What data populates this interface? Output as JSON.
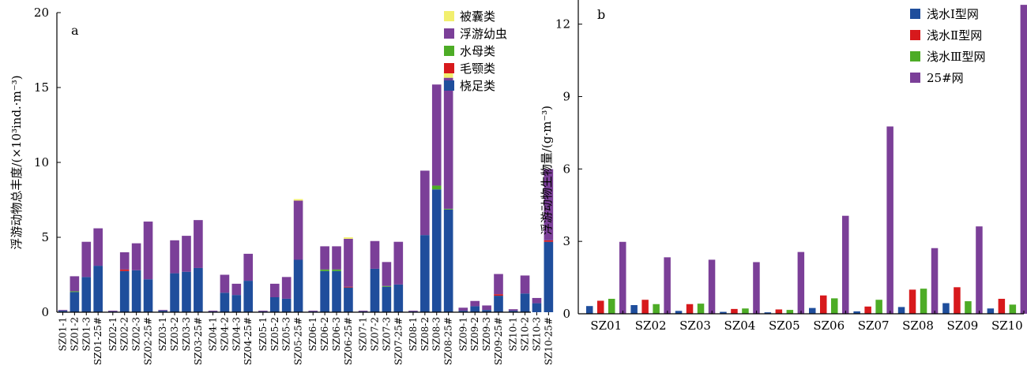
{
  "chart_data": [
    {
      "panel": "a",
      "type": "bar",
      "stacked": true,
      "ylabel": "浮游动物总丰度/(×10³ind.·m⁻³)",
      "ylim": [
        0,
        20
      ],
      "yticks": [
        0,
        5,
        10,
        15,
        20
      ],
      "legend_position": "top-right",
      "categories": [
        "SZ01-1",
        "SZ01-2",
        "SZ01-3",
        "SZ01-25#",
        "SZ02-1",
        "SZ02-2",
        "SZ02-3",
        "SZ02-25#",
        "SZ03-1",
        "SZ03-2",
        "SZ03-3",
        "SZ03-25#",
        "SZ04-1",
        "SZ04-2",
        "SZ04-3",
        "SZ04-25#",
        "SZ05-1",
        "SZ05-2",
        "SZ05-3",
        "SZ05-25#",
        "SZ06-1",
        "SZ06-2",
        "SZ06-3",
        "SZ06-25#",
        "SZ07-1",
        "SZ07-2",
        "SZ07-3",
        "SZ07-25#",
        "SZ08-1",
        "SZ08-2",
        "SZ08-3",
        "SZ08-25#",
        "SZ09-1",
        "SZ09-2",
        "SZ09-3",
        "SZ09-25#",
        "SZ10-1",
        "SZ10-2",
        "SZ10-3",
        "SZ10-25#"
      ],
      "series": [
        {
          "name": "桡足类",
          "color": "#1f4e9c",
          "values": [
            0.1,
            1.35,
            2.35,
            3.1,
            0.05,
            2.75,
            2.8,
            2.2,
            0.1,
            2.6,
            2.7,
            2.95,
            0.05,
            1.3,
            1.15,
            2.1,
            0.05,
            1.0,
            0.9,
            3.5,
            0.05,
            2.75,
            2.75,
            1.65,
            0.05,
            2.9,
            1.7,
            1.85,
            0.05,
            5.15,
            8.2,
            6.85,
            0.1,
            0.4,
            0.15,
            1.1,
            0.1,
            1.25,
            0.6,
            4.7
          ]
        },
        {
          "name": "毛颚类",
          "color": "#d7191c",
          "values": [
            0,
            0,
            0,
            0,
            0,
            0.1,
            0,
            0,
            0,
            0,
            0,
            0,
            0,
            0,
            0,
            0,
            0,
            0,
            0,
            0,
            0,
            0,
            0,
            0.05,
            0,
            0,
            0,
            0,
            0,
            0,
            0,
            0,
            0,
            0,
            0,
            0.1,
            0,
            0,
            0,
            0.1
          ]
        },
        {
          "name": "水母类",
          "color": "#4dac26",
          "values": [
            0,
            0.05,
            0,
            0,
            0,
            0,
            0,
            0,
            0,
            0,
            0,
            0,
            0,
            0,
            0,
            0,
            0,
            0,
            0,
            0,
            0,
            0.1,
            0.1,
            0,
            0,
            0,
            0.05,
            0,
            0,
            0,
            0.25,
            0.05,
            0,
            0,
            0,
            0,
            0,
            0,
            0,
            0
          ]
        },
        {
          "name": "浮游幼虫",
          "color": "#7b3f98",
          "values": [
            0.05,
            1.0,
            2.35,
            2.5,
            0.05,
            1.15,
            1.8,
            3.85,
            0.05,
            2.2,
            2.4,
            3.2,
            0.05,
            1.2,
            0.75,
            1.8,
            0.05,
            0.9,
            1.45,
            3.95,
            0.05,
            1.55,
            1.55,
            3.2,
            0.05,
            1.85,
            1.6,
            2.85,
            0.05,
            4.3,
            6.75,
            8.75,
            0.2,
            0.35,
            0.3,
            1.35,
            0.1,
            1.2,
            0.35,
            4.75
          ]
        },
        {
          "name": "被囊类",
          "color": "#f2ef6e",
          "values": [
            0,
            0,
            0,
            0,
            0,
            0,
            0,
            0,
            0,
            0,
            0,
            0,
            0,
            0,
            0,
            0,
            0,
            0,
            0,
            0.1,
            0,
            0,
            0,
            0.1,
            0,
            0,
            0,
            0,
            0,
            0,
            0,
            0.45,
            0,
            0,
            0,
            0,
            0,
            0,
            0,
            0
          ]
        }
      ]
    },
    {
      "panel": "b",
      "type": "bar",
      "ylabel": "浮游动物生物量/(g·m⁻³)",
      "ylim": [
        0,
        13
      ],
      "yticks": [
        0,
        3,
        6,
        9,
        12
      ],
      "legend_position": "top-right",
      "categories": [
        "SZ01",
        "SZ02",
        "SZ03",
        "SZ04",
        "SZ05",
        "SZ06",
        "SZ07",
        "SZ08",
        "SZ09",
        "SZ10"
      ],
      "series": [
        {
          "name": "浅水Ⅰ型网",
          "color": "#1f4e9c",
          "values": [
            0.32,
            0.36,
            0.12,
            0.08,
            0.06,
            0.24,
            0.1,
            0.28,
            0.44,
            0.22
          ]
        },
        {
          "name": "浅水Ⅱ型网",
          "color": "#d7191c",
          "values": [
            0.54,
            0.58,
            0.4,
            0.2,
            0.18,
            0.76,
            0.3,
            1.0,
            1.1,
            0.62
          ]
        },
        {
          "name": "浅水Ⅲ型网",
          "color": "#4dac26",
          "values": [
            0.62,
            0.4,
            0.42,
            0.22,
            0.16,
            0.64,
            0.58,
            1.04,
            0.52,
            0.38
          ]
        },
        {
          "name": "25#网",
          "color": "#7b3f98",
          "values": [
            2.98,
            2.34,
            2.24,
            2.14,
            2.56,
            4.06,
            7.76,
            2.72,
            3.62,
            12.8
          ]
        }
      ]
    }
  ]
}
